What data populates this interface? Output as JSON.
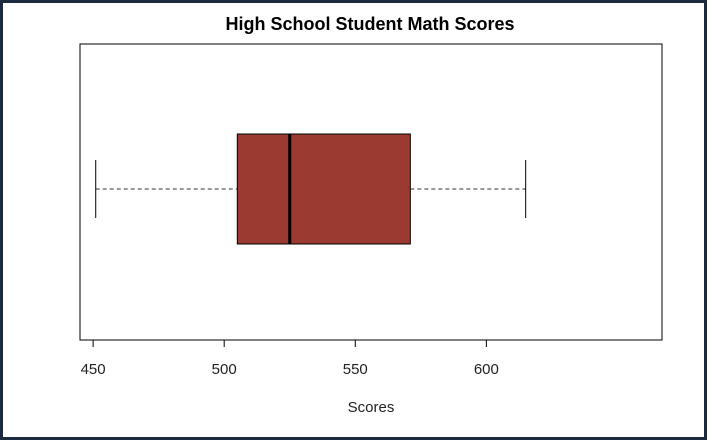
{
  "chart_data": {
    "type": "boxplot",
    "orientation": "horizontal",
    "title": "High School Student Math Scores",
    "xlabel": "Scores",
    "ylabel": "",
    "xlim": [
      445,
      667
    ],
    "ticks": [
      450,
      500,
      550,
      600
    ],
    "tick_labels": [
      "450",
      "500",
      "550",
      "600"
    ],
    "series": [
      {
        "min": 451,
        "q1": 505,
        "median": 525,
        "q3": 571,
        "max": 615
      }
    ],
    "box_color": "#9b3a31",
    "grid": false,
    "legend": "none"
  }
}
